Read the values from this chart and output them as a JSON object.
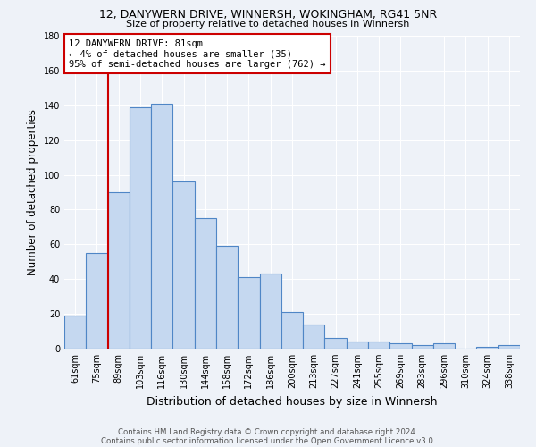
{
  "title1": "12, DANYWERN DRIVE, WINNERSH, WOKINGHAM, RG41 5NR",
  "title2": "Size of property relative to detached houses in Winnersh",
  "xlabel": "Distribution of detached houses by size in Winnersh",
  "ylabel": "Number of detached properties",
  "categories": [
    "61sqm",
    "75sqm",
    "89sqm",
    "103sqm",
    "116sqm",
    "130sqm",
    "144sqm",
    "158sqm",
    "172sqm",
    "186sqm",
    "200sqm",
    "213sqm",
    "227sqm",
    "241sqm",
    "255sqm",
    "269sqm",
    "283sqm",
    "296sqm",
    "310sqm",
    "324sqm",
    "338sqm"
  ],
  "values": [
    19,
    55,
    90,
    139,
    141,
    96,
    75,
    59,
    41,
    43,
    21,
    14,
    6,
    4,
    4,
    3,
    2,
    3,
    0,
    1,
    2
  ],
  "bar_color": "#c5d8f0",
  "bar_edge_color": "#4f86c6",
  "vline_color": "#cc0000",
  "vline_bar_index": 1,
  "annotation_text": "12 DANYWERN DRIVE: 81sqm\n← 4% of detached houses are smaller (35)\n95% of semi-detached houses are larger (762) →",
  "annotation_box_color": "white",
  "annotation_box_edge": "#cc0000",
  "ylim": [
    0,
    180
  ],
  "yticks": [
    0,
    20,
    40,
    60,
    80,
    100,
    120,
    140,
    160,
    180
  ],
  "footer1": "Contains HM Land Registry data © Crown copyright and database right 2024.",
  "footer2": "Contains public sector information licensed under the Open Government Licence v3.0.",
  "bg_color": "#eef2f8"
}
